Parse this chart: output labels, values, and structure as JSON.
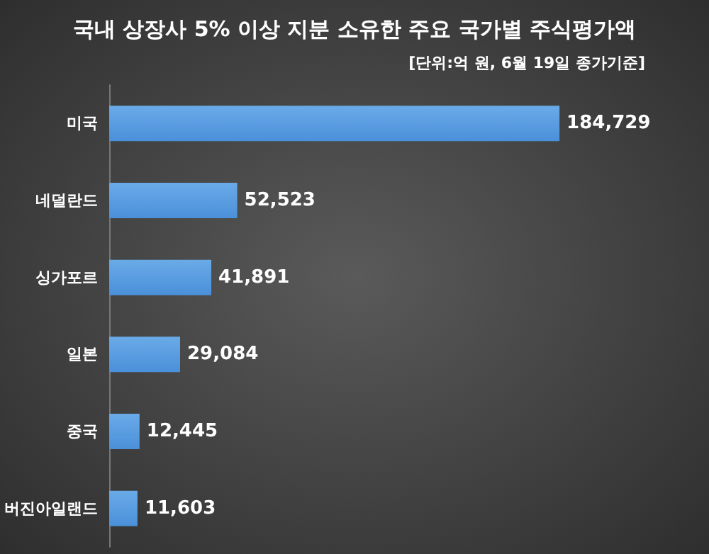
{
  "chart_data": {
    "type": "bar",
    "orientation": "horizontal",
    "title": "국내 상장사 5% 이상 지분 소유한 주요 국가별 주식평가액",
    "subtitle": "[단위:억 원, 6월 19일 종가기준]",
    "categories": [
      "미국",
      "네덜란드",
      "싱가포르",
      "일본",
      "중국",
      "버진아일랜드"
    ],
    "values": [
      184729,
      52523,
      41891,
      29084,
      12445,
      11603
    ],
    "value_labels": [
      "184,729",
      "52,523",
      "41,891",
      "29,084",
      "12,445",
      "11,603"
    ],
    "color": "#4a90d9"
  }
}
